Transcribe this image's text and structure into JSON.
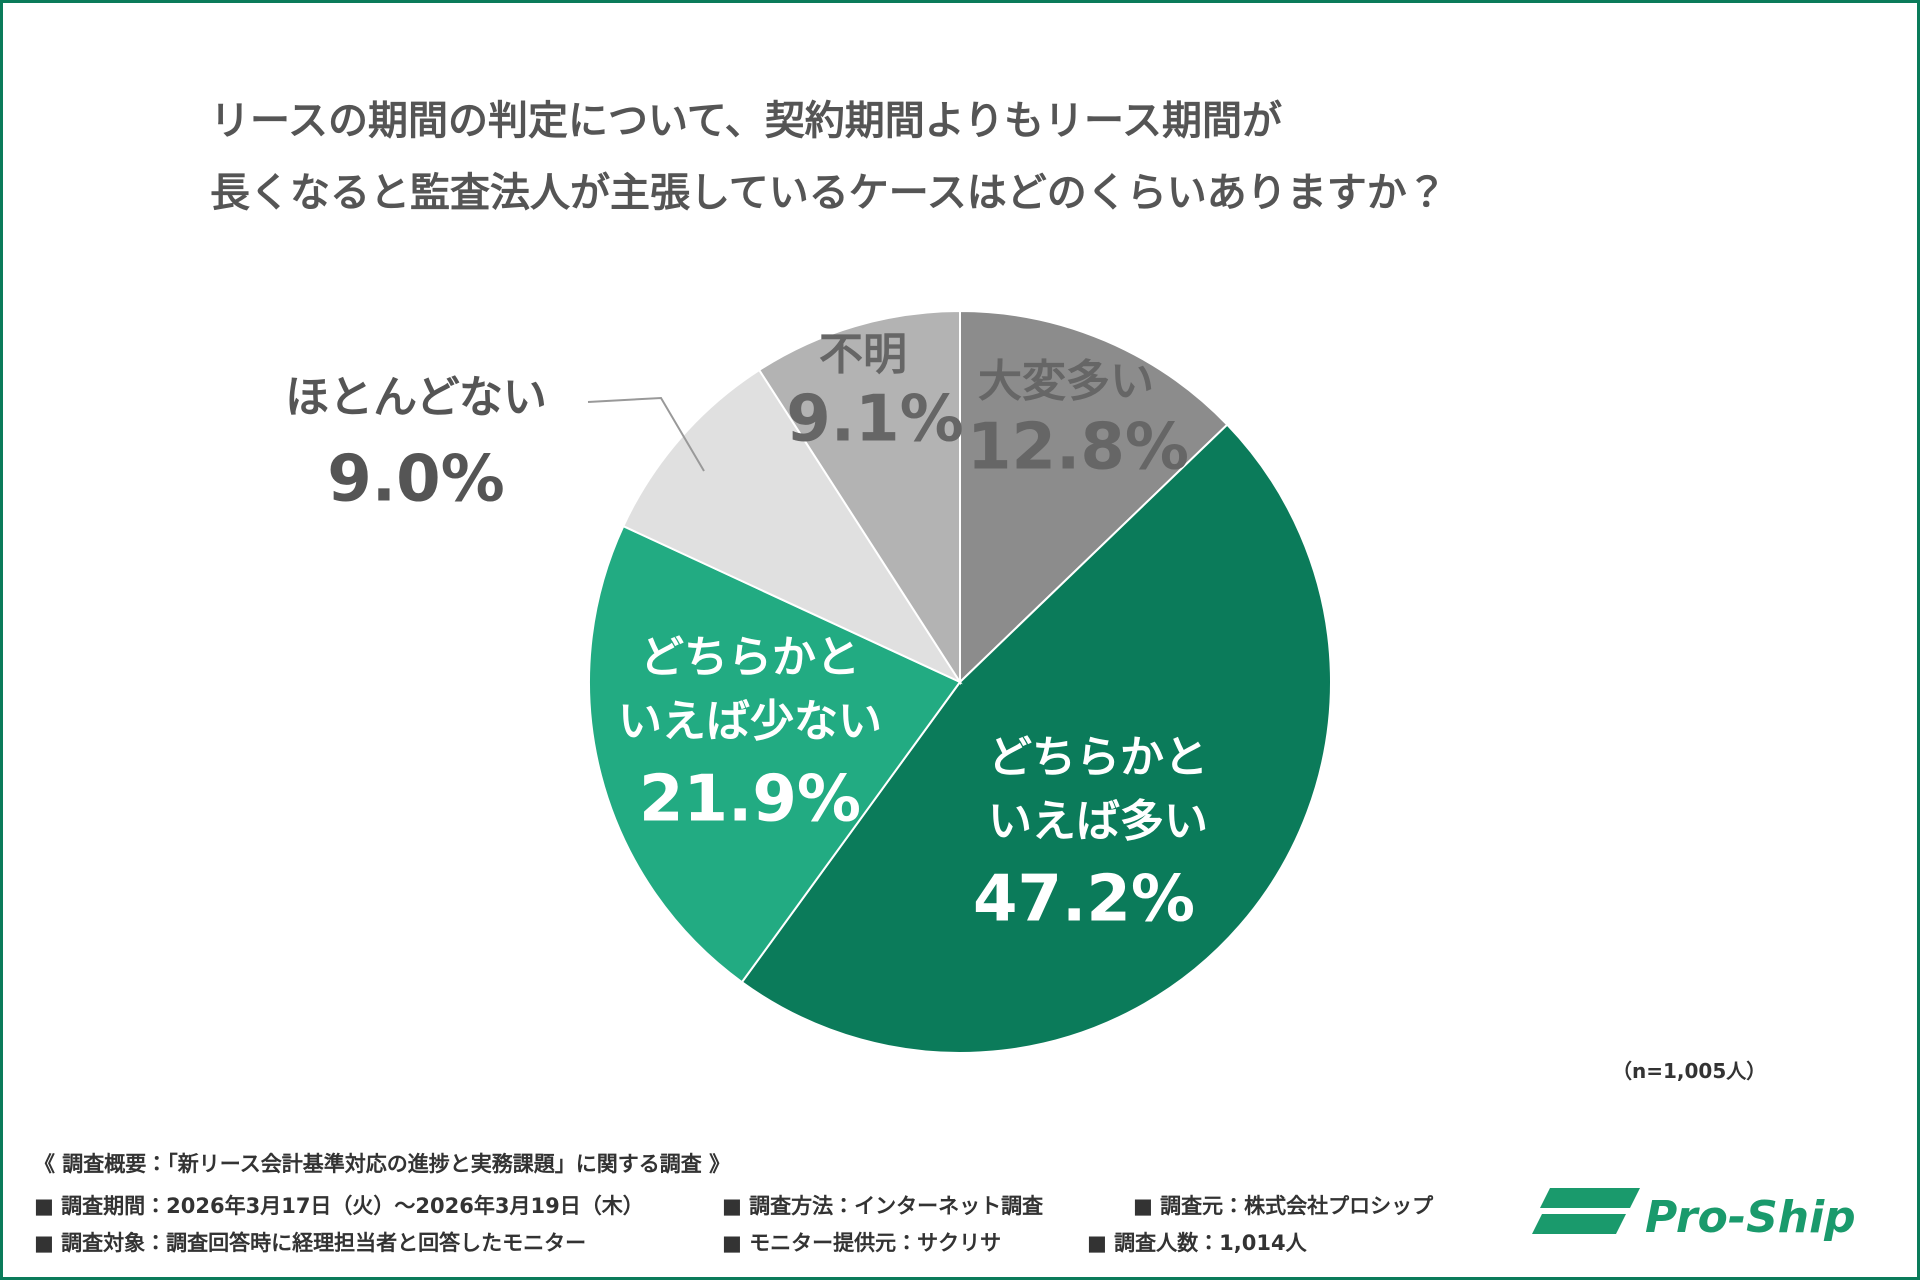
{
  "chart_data": {
    "type": "pie",
    "title": [
      "リースの期間の判定について、契約期間よりもリース期間が",
      "長くなると監査法人が主張しているケースはどのくらいありますか？"
    ],
    "categories": [
      "大変多い",
      "どちらかと\nいえば多い",
      "どちらかと\nいえば少ない",
      "ほとんどない",
      "不明"
    ],
    "values": [
      12.8,
      47.2,
      21.9,
      9.0,
      9.1
    ],
    "value_labels": [
      "12.8%",
      "47.2%",
      "21.9%",
      "9.0%",
      "9.1%"
    ],
    "colors": [
      "#8c8c8c",
      "#0b7b5a",
      "#22ab82",
      "#e0e0e0",
      "#b3b3b3"
    ],
    "note": "（n=1,005人）"
  },
  "footer": {
    "heading": "《 調査概要：「新リース会計基準対応の進捗と実務課題」に関する調査 》",
    "items": [
      "■ 調査期間：2026年3月17日（火）～2026年3月19日（木）",
      "■ 調査方法：インターネット調査",
      "■ 調査元：株式会社プロシップ",
      "■ 調査対象：調査回答時に経理担当者と回答したモニター",
      "■ モニター提供元：サクリサ",
      "■ 調査人数：1,014人"
    ],
    "logo": "Pro-Ship"
  }
}
